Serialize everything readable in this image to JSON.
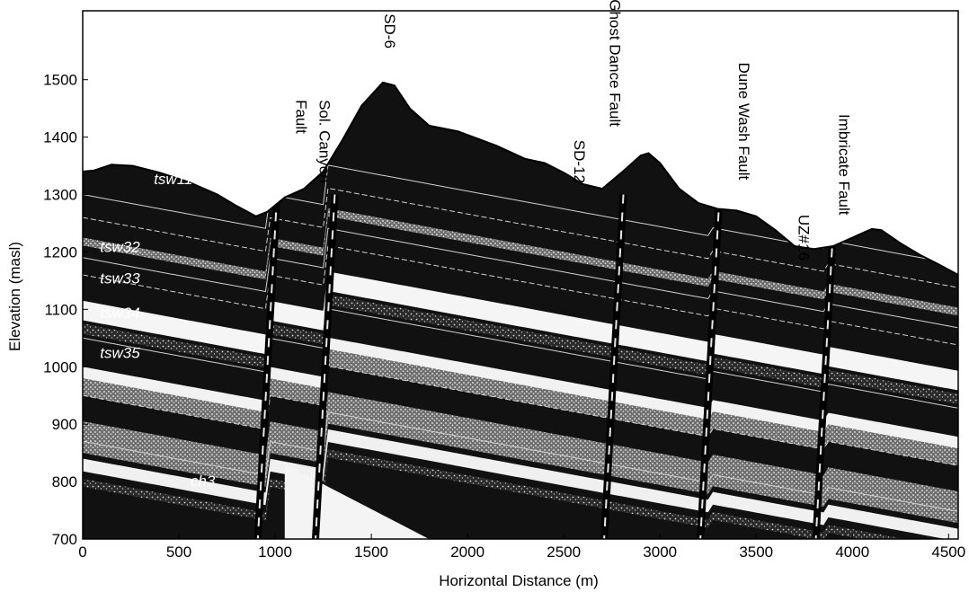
{
  "figure": {
    "xlabel": "Horizontal Distance (m)",
    "ylabel": "Elevation (masl)",
    "xlim": [
      0,
      4550
    ],
    "ylim": [
      700,
      1620
    ],
    "x_ticks": [
      "0",
      "500",
      "1000",
      "1500",
      "2000",
      "2500",
      "3000",
      "3500",
      "4000",
      "4500"
    ],
    "y_ticks": [
      "700",
      "800",
      "900",
      "1000",
      "1100",
      "1200",
      "1300",
      "1400",
      "1500"
    ],
    "x_tick_values": [
      0,
      500,
      1000,
      1500,
      2000,
      2500,
      3000,
      3500,
      4000,
      4500
    ],
    "y_tick_values": [
      700,
      800,
      900,
      1000,
      1100,
      1200,
      1300,
      1400,
      1500
    ],
    "surface_profile": [
      [
        0,
        1340
      ],
      [
        60,
        1342
      ],
      [
        150,
        1352
      ],
      [
        260,
        1350
      ],
      [
        400,
        1338
      ],
      [
        550,
        1322
      ],
      [
        700,
        1300
      ],
      [
        800,
        1280
      ],
      [
        900,
        1262
      ],
      [
        960,
        1270
      ],
      [
        1050,
        1295
      ],
      [
        1150,
        1310
      ],
      [
        1250,
        1340
      ],
      [
        1350,
        1395
      ],
      [
        1450,
        1455
      ],
      [
        1560,
        1495
      ],
      [
        1620,
        1490
      ],
      [
        1700,
        1450
      ],
      [
        1800,
        1420
      ],
      [
        1950,
        1410
      ],
      [
        2150,
        1385
      ],
      [
        2300,
        1362
      ],
      [
        2400,
        1355
      ],
      [
        2500,
        1338
      ],
      [
        2600,
        1318
      ],
      [
        2700,
        1310
      ],
      [
        2800,
        1338
      ],
      [
        2900,
        1368
      ],
      [
        2940,
        1372
      ],
      [
        3000,
        1355
      ],
      [
        3100,
        1310
      ],
      [
        3200,
        1285
      ],
      [
        3300,
        1275
      ],
      [
        3400,
        1272
      ],
      [
        3500,
        1262
      ],
      [
        3600,
        1238
      ],
      [
        3700,
        1210
      ],
      [
        3800,
        1205
      ],
      [
        3900,
        1210
      ],
      [
        4000,
        1225
      ],
      [
        4100,
        1240
      ],
      [
        4150,
        1238
      ],
      [
        4250,
        1215
      ],
      [
        4350,
        1195
      ],
      [
        4450,
        1178
      ],
      [
        4550,
        1160
      ]
    ],
    "fault_labels": [
      {
        "text": "Sol. Canyon",
        "x": 1230,
        "y": 1465
      },
      {
        "text": "Fault",
        "x": 1110,
        "y": 1465
      },
      {
        "text": "SD-6",
        "x": 1570,
        "y": 1615
      },
      {
        "text": "SD-12",
        "x": 2555,
        "y": 1395
      },
      {
        "text": "Ghost Dance Fault",
        "x": 2740,
        "y": 1640
      },
      {
        "text": "Dune Wash Fault",
        "x": 3410,
        "y": 1530
      },
      {
        "text": "UZ#16",
        "x": 3720,
        "y": 1265
      },
      {
        "text": "Imbricate Fault",
        "x": 3930,
        "y": 1440
      }
    ],
    "unit_labels": [
      {
        "text": "tsw11",
        "x": 370,
        "y": 1318
      },
      {
        "text": "tsw32",
        "x": 90,
        "y": 1200
      },
      {
        "text": "tsw33",
        "x": 90,
        "y": 1145
      },
      {
        "text": "tsw34",
        "x": 90,
        "y": 1085
      },
      {
        "text": "tsw35",
        "x": 90,
        "y": 1015
      },
      {
        "text": "ch3",
        "x": 560,
        "y": 792
      }
    ]
  }
}
